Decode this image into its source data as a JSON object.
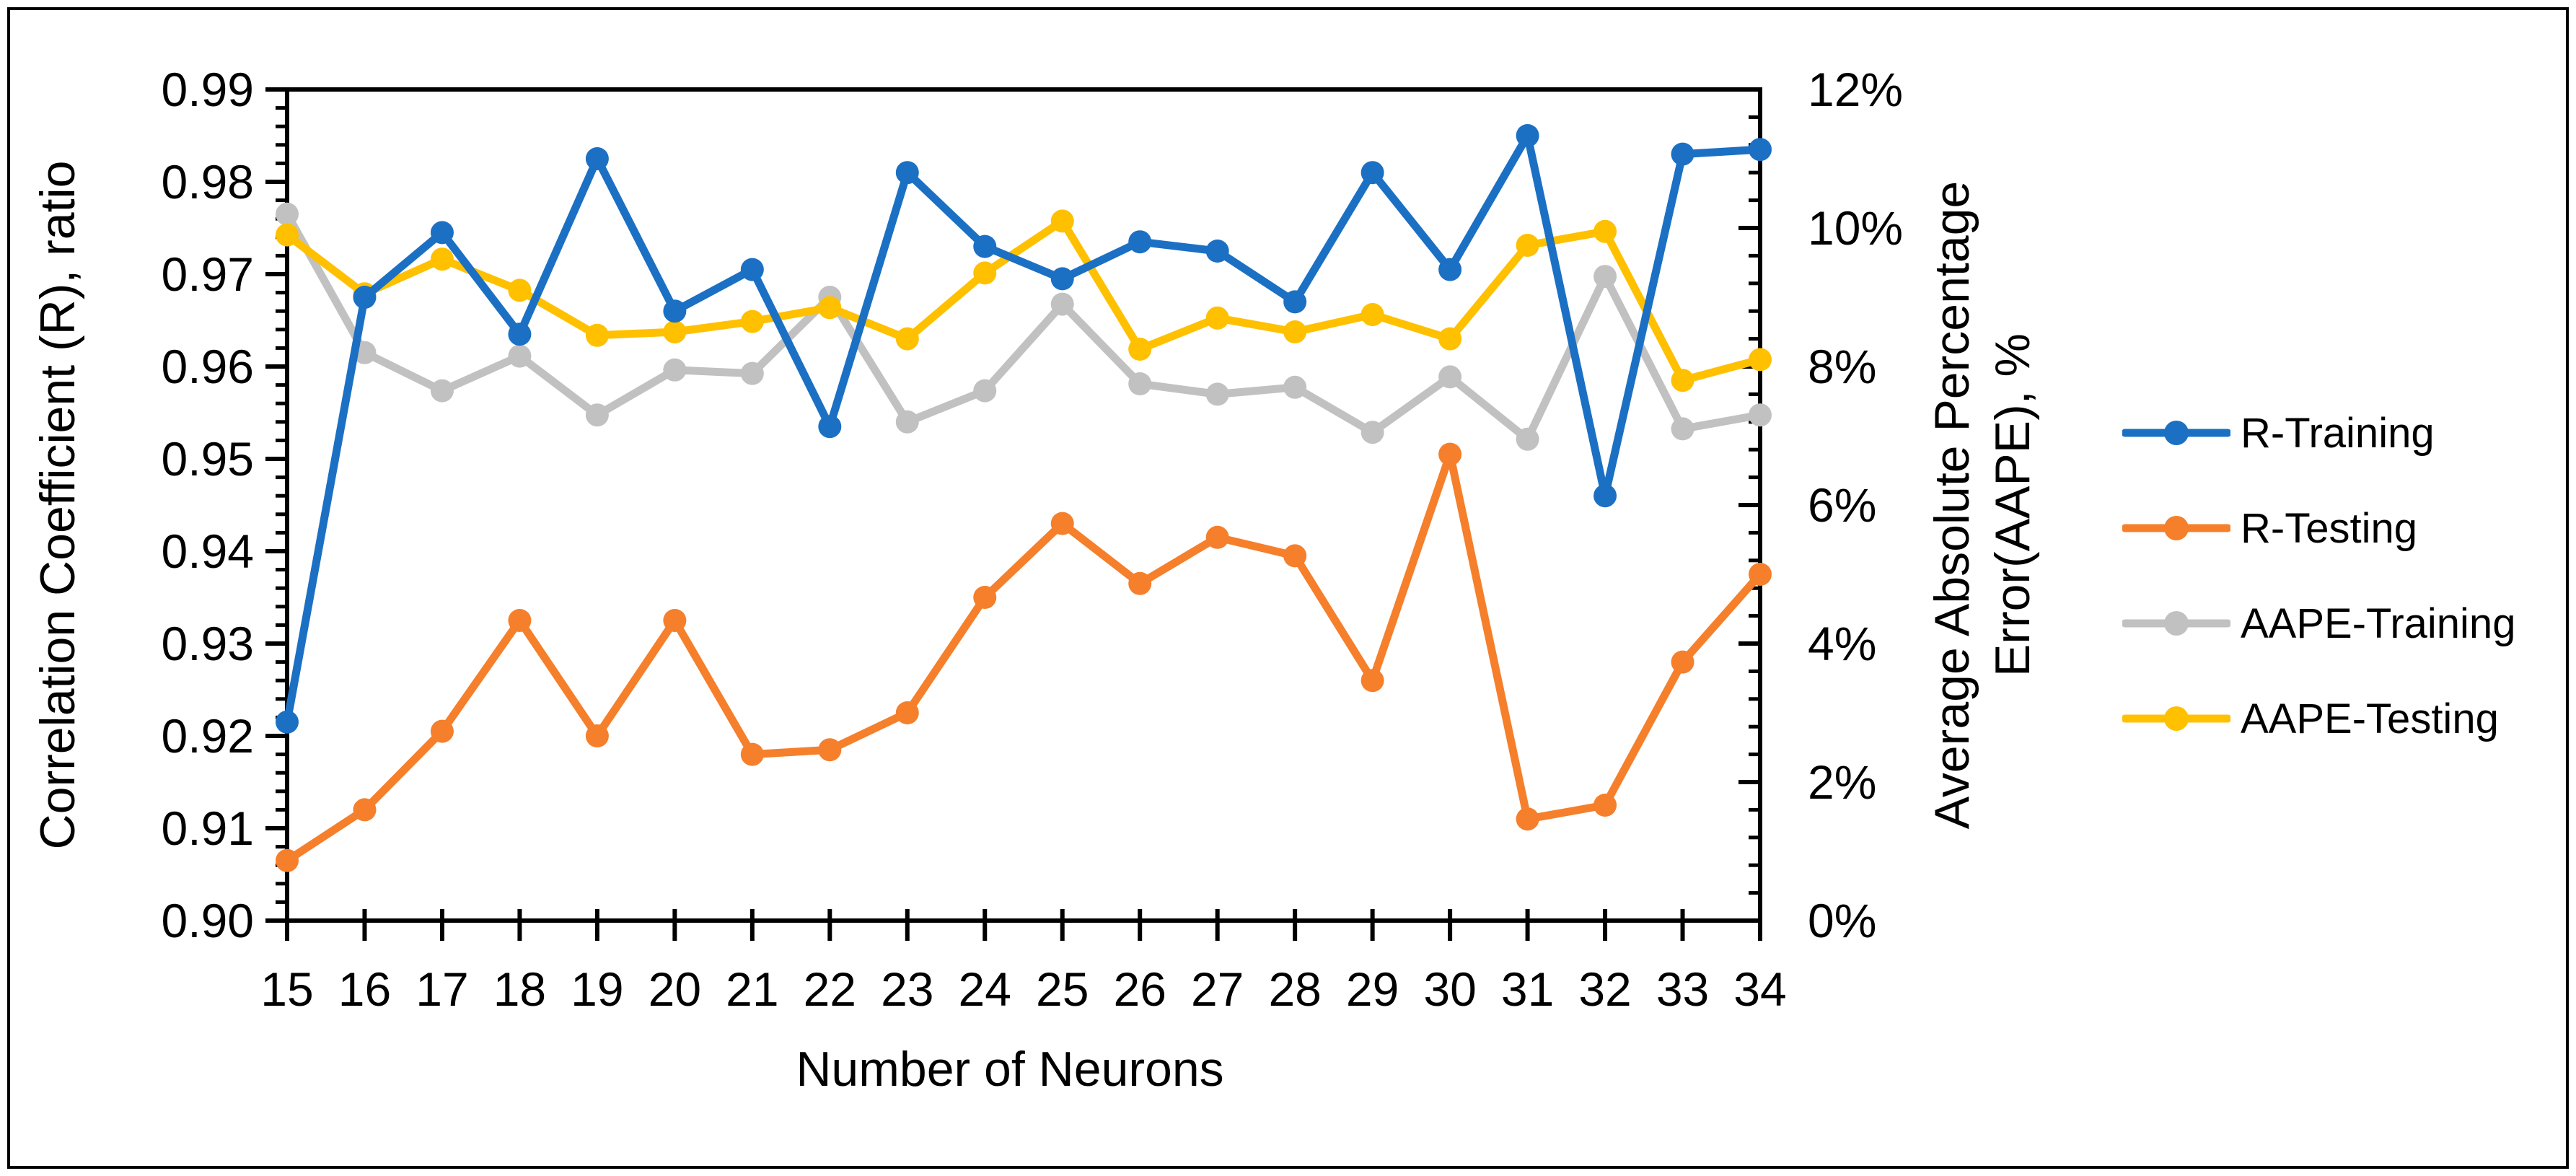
{
  "figure": {
    "background": "#ffffff",
    "border_color": "#000000"
  },
  "chart_data": {
    "type": "line",
    "x": [
      15,
      16,
      17,
      18,
      19,
      20,
      21,
      22,
      23,
      24,
      25,
      26,
      27,
      28,
      29,
      30,
      31,
      32,
      33,
      34
    ],
    "x_tick_labels": [
      "15",
      "16",
      "17",
      "18",
      "19",
      "20",
      "21",
      "22",
      "23",
      "24",
      "25",
      "26",
      "27",
      "28",
      "29",
      "30",
      "31",
      "32",
      "33",
      "34"
    ],
    "xlabel": "Number of Neurons",
    "grid": "off",
    "legend_position": "right",
    "left_axis": {
      "title": "Correlation Coefficient (R), ratio",
      "min": 0.9,
      "max": 0.99,
      "major_step": 0.01,
      "minor_step": 0.002,
      "tick_labels": [
        "0.90",
        "0.91",
        "0.92",
        "0.93",
        "0.94",
        "0.95",
        "0.96",
        "0.97",
        "0.98",
        "0.99"
      ]
    },
    "right_axis": {
      "title_line1": "Average Absolute Percentage",
      "title_line2": "Error(AAPE), %",
      "min": 0,
      "max": 12,
      "major_step": 2,
      "minor_step": 0.4,
      "tick_labels": [
        "0%",
        "2%",
        "4%",
        "6%",
        "8%",
        "10%",
        "12%"
      ]
    },
    "series": [
      {
        "name": "AAPE-Training",
        "axis": "right",
        "color": "#C1C1C1",
        "values": [
          10.2,
          8.2,
          7.65,
          8.15,
          7.3,
          7.95,
          7.9,
          9.0,
          7.2,
          7.65,
          8.9,
          7.75,
          7.6,
          7.7,
          7.05,
          7.85,
          6.95,
          9.3,
          7.1,
          7.3
        ]
      },
      {
        "name": "AAPE-Testing",
        "axis": "right",
        "color": "#FFC000",
        "values": [
          9.9,
          9.05,
          9.55,
          9.1,
          8.45,
          8.5,
          8.65,
          8.85,
          8.4,
          9.35,
          10.1,
          8.25,
          8.7,
          8.5,
          8.75,
          8.4,
          9.75,
          9.95,
          7.8,
          8.1
        ]
      },
      {
        "name": "R-Testing",
        "axis": "left",
        "color": "#F57F2B",
        "values": [
          0.9065,
          0.912,
          0.9205,
          0.9325,
          0.92,
          0.9325,
          0.918,
          0.9185,
          0.9225,
          0.935,
          0.943,
          0.9365,
          0.9415,
          0.9395,
          0.926,
          0.9505,
          0.911,
          0.9125,
          0.928,
          0.9375
        ]
      },
      {
        "name": "R-Training",
        "axis": "left",
        "color": "#1B70C4",
        "values": [
          0.9215,
          0.9675,
          0.9745,
          0.9635,
          0.9825,
          0.966,
          0.9705,
          0.9535,
          0.981,
          0.973,
          0.9695,
          0.9735,
          0.9725,
          0.967,
          0.981,
          0.9705,
          0.985,
          0.946,
          0.983,
          0.9835
        ]
      }
    ],
    "legend": {
      "items": [
        {
          "label": "R-Training",
          "color": "#1B70C4"
        },
        {
          "label": "R-Testing",
          "color": "#F57F2B"
        },
        {
          "label": "AAPE-Training",
          "color": "#C1C1C1"
        },
        {
          "label": "AAPE-Testing",
          "color": "#FFC000"
        }
      ]
    }
  }
}
